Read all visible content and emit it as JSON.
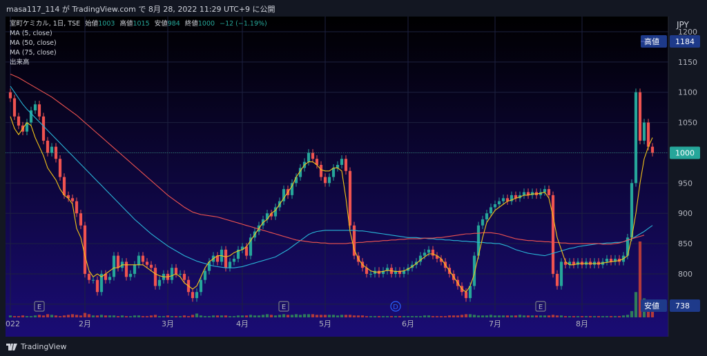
{
  "header": {
    "caption": "masa117_114 が TradingView.com で 8月 28, 2022 11:29 UTC+9 に公開"
  },
  "legend": {
    "symbol": "室町ケミカル, 1日, TSE",
    "open_label": "始値",
    "open_value": "1003",
    "high_label": "高値",
    "high_value": "1015",
    "low_label": "安値",
    "low_value": "984",
    "close_label": "終値",
    "close_value": "1000",
    "change": "−12 (−1.19%)",
    "ma5": "MA (5, close)",
    "ma50": "MA (50, close)",
    "ma75": "MA (75, close)",
    "volume": "出来高"
  },
  "price_axis": {
    "currency": "JPY",
    "ticks": [
      "1200",
      "1150",
      "1100",
      "1050",
      "1000",
      "950",
      "900",
      "850",
      "800",
      "750"
    ],
    "high_badge_label": "高値",
    "high_badge_value": "1184",
    "last_value": "1000",
    "low_badge_label": "安値",
    "low_badge_value": "738"
  },
  "time_axis": {
    "labels": [
      "022",
      "2月",
      "3月",
      "4月",
      "5月",
      "6月",
      "7月",
      "8月"
    ]
  },
  "event_markers": [
    "E",
    "E",
    "D",
    "E"
  ],
  "footer": {
    "brand": "TradingView"
  },
  "colors": {
    "up": "#26a69a",
    "down": "#ef5350",
    "ma5": "#f5c518",
    "ma50": "#ef5350",
    "ma75": "#29b6d8",
    "background_top": "#000000",
    "background_bottom": "#1a0c75"
  },
  "chart_data": {
    "type": "candlestick",
    "title": "室町ケミカル, 1日, TSE",
    "ylabel": "JPY",
    "ylim": [
      735,
      1225
    ],
    "x_tick_labels": [
      "022",
      "2月",
      "3月",
      "4月",
      "5月",
      "6月",
      "7月",
      "8月"
    ],
    "last_ohlc": {
      "open": 1003,
      "high": 1015,
      "low": 984,
      "close": 1000
    },
    "period_high": 1184,
    "period_low": 738,
    "closes": [
      1090,
      1060,
      1045,
      1035,
      1050,
      1070,
      1080,
      1060,
      1020,
      1000,
      1010,
      990,
      960,
      930,
      925,
      920,
      900,
      880,
      800,
      790,
      790,
      770,
      800,
      790,
      795,
      830,
      810,
      820,
      795,
      800,
      815,
      830,
      820,
      815,
      810,
      780,
      790,
      800,
      790,
      810,
      800,
      800,
      790,
      770,
      760,
      770,
      790,
      805,
      820,
      830,
      820,
      840,
      810,
      820,
      825,
      840,
      845,
      830,
      860,
      870,
      880,
      890,
      900,
      895,
      910,
      920,
      940,
      930,
      950,
      960,
      975,
      985,
      1000,
      990,
      980,
      960,
      950,
      960,
      975,
      980,
      990,
      970,
      880,
      830,
      820,
      810,
      800,
      800,
      805,
      800,
      805,
      810,
      800,
      805,
      800,
      805,
      810,
      815,
      820,
      830,
      835,
      840,
      830,
      825,
      820,
      810,
      800,
      790,
      780,
      770,
      760,
      780,
      830,
      880,
      890,
      900,
      910,
      915,
      920,
      925,
      920,
      930,
      925,
      930,
      935,
      930,
      935,
      930,
      935,
      940,
      930,
      800,
      780,
      820,
      815,
      820,
      815,
      820,
      815,
      820,
      815,
      820,
      815,
      820,
      825,
      820,
      825,
      820,
      830,
      860,
      950,
      1100,
      1020,
      1050,
      1010,
      1000
    ],
    "ma5": [
      1060,
      1040,
      1030,
      1040,
      1050,
      1045,
      1025,
      1010,
      995,
      975,
      965,
      955,
      940,
      930,
      925,
      915,
      875,
      860,
      830,
      805,
      795,
      800,
      795,
      800,
      805,
      810,
      810,
      815,
      815,
      815,
      815,
      815,
      815,
      810,
      805,
      800,
      797,
      795,
      795,
      797,
      800,
      795,
      785,
      780,
      775,
      780,
      795,
      810,
      820,
      825,
      830,
      830,
      828,
      830,
      835,
      838,
      840,
      845,
      855,
      865,
      875,
      885,
      890,
      900,
      905,
      915,
      925,
      935,
      945,
      960,
      970,
      980,
      985,
      985,
      980,
      972,
      970,
      970,
      975,
      975,
      970,
      925,
      870,
      840,
      825,
      815,
      810,
      805,
      803,
      803,
      804,
      806,
      805,
      804,
      804,
      805,
      808,
      812,
      817,
      823,
      828,
      833,
      833,
      830,
      825,
      815,
      805,
      795,
      785,
      775,
      770,
      780,
      800,
      830,
      860,
      885,
      895,
      905,
      910,
      915,
      920,
      922,
      925,
      927,
      930,
      930,
      932,
      932,
      933,
      935,
      925,
      895,
      860,
      840,
      820,
      815,
      815,
      817,
      817,
      817,
      817,
      817,
      817,
      818,
      819,
      820,
      821,
      822,
      825,
      830,
      860,
      900,
      950,
      990,
      1010,
      1025
    ],
    "ma50": [
      1130,
      1127,
      1124,
      1120,
      1116,
      1112,
      1108,
      1104,
      1100,
      1096,
      1092,
      1087,
      1082,
      1077,
      1072,
      1067,
      1062,
      1056,
      1050,
      1044,
      1038,
      1032,
      1026,
      1020,
      1014,
      1008,
      1002,
      996,
      990,
      984,
      978,
      972,
      966,
      960,
      954,
      948,
      942,
      936,
      930,
      925,
      920,
      915,
      910,
      906,
      902,
      900,
      898,
      897,
      896,
      895,
      894,
      892,
      890,
      888,
      886,
      884,
      882,
      880,
      878,
      876,
      874,
      872,
      870,
      868,
      866,
      864,
      862,
      860,
      858,
      856,
      855,
      854,
      853,
      852,
      852,
      851,
      851,
      850,
      850,
      850,
      850,
      850,
      851,
      851,
      852,
      852,
      853,
      853,
      854,
      854,
      855,
      855,
      856,
      856,
      857,
      857,
      858,
      858,
      858,
      858,
      859,
      859,
      859,
      860,
      860,
      861,
      862,
      863,
      864,
      865,
      866,
      866,
      867,
      867,
      868,
      868,
      868,
      867,
      866,
      864,
      862,
      860,
      858,
      857,
      856,
      855,
      855,
      854,
      854,
      853,
      853,
      852,
      852,
      851,
      851,
      850,
      850,
      850,
      850,
      850,
      850,
      850,
      850,
      849,
      849,
      849,
      850,
      851,
      853,
      856,
      858,
      860,
      862,
      864
    ],
    "ma75": [
      1110,
      1100,
      1090,
      1080,
      1072,
      1065,
      1058,
      1051,
      1044,
      1037,
      1030,
      1023,
      1016,
      1009,
      1002,
      995,
      988,
      981,
      974,
      967,
      960,
      953,
      946,
      939,
      932,
      925,
      918,
      911,
      904,
      897,
      890,
      884,
      878,
      872,
      866,
      861,
      856,
      851,
      846,
      842,
      838,
      834,
      830,
      827,
      824,
      821,
      819,
      817,
      815,
      813,
      812,
      811,
      810,
      810,
      810,
      811,
      812,
      814,
      816,
      818,
      820,
      822,
      824,
      826,
      828,
      832,
      836,
      840,
      845,
      850,
      855,
      860,
      865,
      868,
      870,
      871,
      872,
      872,
      872,
      872,
      872,
      872,
      872,
      872,
      871,
      871,
      870,
      869,
      868,
      867,
      866,
      865,
      864,
      863,
      862,
      861,
      860,
      860,
      860,
      859,
      859,
      858,
      858,
      857,
      857,
      856,
      856,
      855,
      855,
      854,
      854,
      853,
      853,
      852,
      852,
      851,
      851,
      850,
      850,
      848,
      846,
      843,
      840,
      838,
      836,
      834,
      833,
      832,
      831,
      830,
      832,
      834,
      836,
      838,
      840,
      842,
      843,
      845,
      846,
      847,
      848,
      849,
      850,
      850,
      851,
      851,
      852,
      852,
      853,
      855,
      858,
      862,
      866,
      870,
      875,
      880
    ],
    "volume": [
      3,
      2,
      2,
      3,
      2,
      2,
      3,
      4,
      3,
      5,
      4,
      3,
      2,
      3,
      4,
      5,
      4,
      3,
      7,
      5,
      3,
      3,
      4,
      3,
      3,
      3,
      2,
      3,
      2,
      2,
      3,
      3,
      2,
      2,
      3,
      4,
      2,
      2,
      3,
      2,
      2,
      2,
      3,
      2,
      4,
      6,
      3,
      2,
      2,
      3,
      3,
      3,
      3,
      2,
      2,
      3,
      3,
      3,
      4,
      3,
      3,
      4,
      5,
      4,
      3,
      4,
      5,
      4,
      4,
      5,
      4,
      5,
      5,
      5,
      4,
      4,
      4,
      4,
      4,
      3,
      4,
      4,
      4,
      3,
      3,
      3,
      2,
      2,
      2,
      2,
      2,
      2,
      2,
      2,
      2,
      2,
      2,
      2,
      2,
      2,
      3,
      3,
      2,
      2,
      2,
      2,
      3,
      3,
      3,
      4,
      5,
      5,
      4,
      3,
      3,
      3,
      4,
      3,
      3,
      3,
      3,
      3,
      3,
      4,
      3,
      3,
      3,
      3,
      3,
      3,
      3,
      4,
      3,
      3,
      2,
      2,
      2,
      2,
      2,
      2,
      2,
      2,
      2,
      2,
      2,
      2,
      2,
      2,
      3,
      4,
      10,
      40,
      120,
      30,
      20,
      10
    ]
  }
}
